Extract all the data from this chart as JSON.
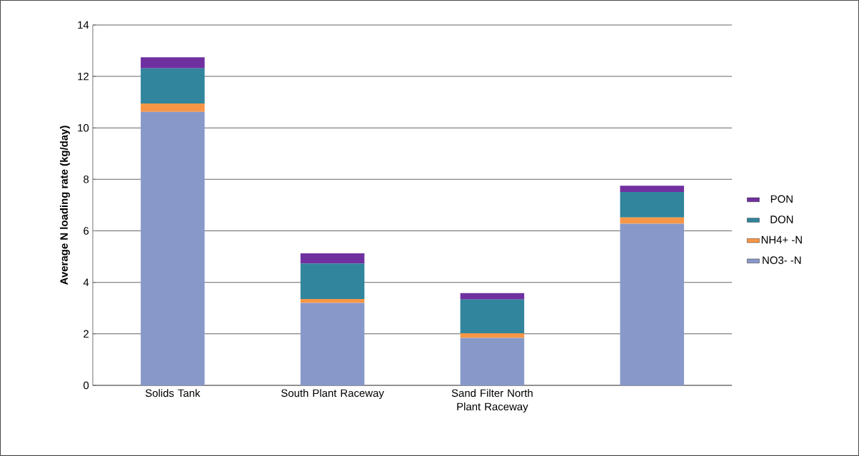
{
  "chart_data": {
    "type": "bar",
    "stacked": true,
    "ylabel": "Average N loading rate (kg/day)",
    "categories": [
      "Solids Tank",
      "South Plant Raceway",
      "Sand Filter North Plant Raceway",
      null
    ],
    "series": [
      {
        "name": "NO3- -N",
        "color": "#8899c9",
        "values": [
          10.62,
          3.2,
          1.84,
          6.28
        ]
      },
      {
        "name": "NH4+ -N",
        "color": "#f79646",
        "values": [
          0.33,
          0.15,
          0.18,
          0.24
        ]
      },
      {
        "name": "DON",
        "color": "#31859c",
        "values": [
          1.36,
          1.38,
          1.31,
          0.99
        ]
      },
      {
        "name": "PON",
        "color": "#7030a0",
        "values": [
          0.43,
          0.4,
          0.25,
          0.24
        ]
      }
    ],
    "ylim": [
      0,
      14
    ],
    "yticks": [
      0,
      2,
      4,
      6,
      8,
      10,
      12,
      14
    ],
    "grid": "y",
    "legend": "right"
  }
}
